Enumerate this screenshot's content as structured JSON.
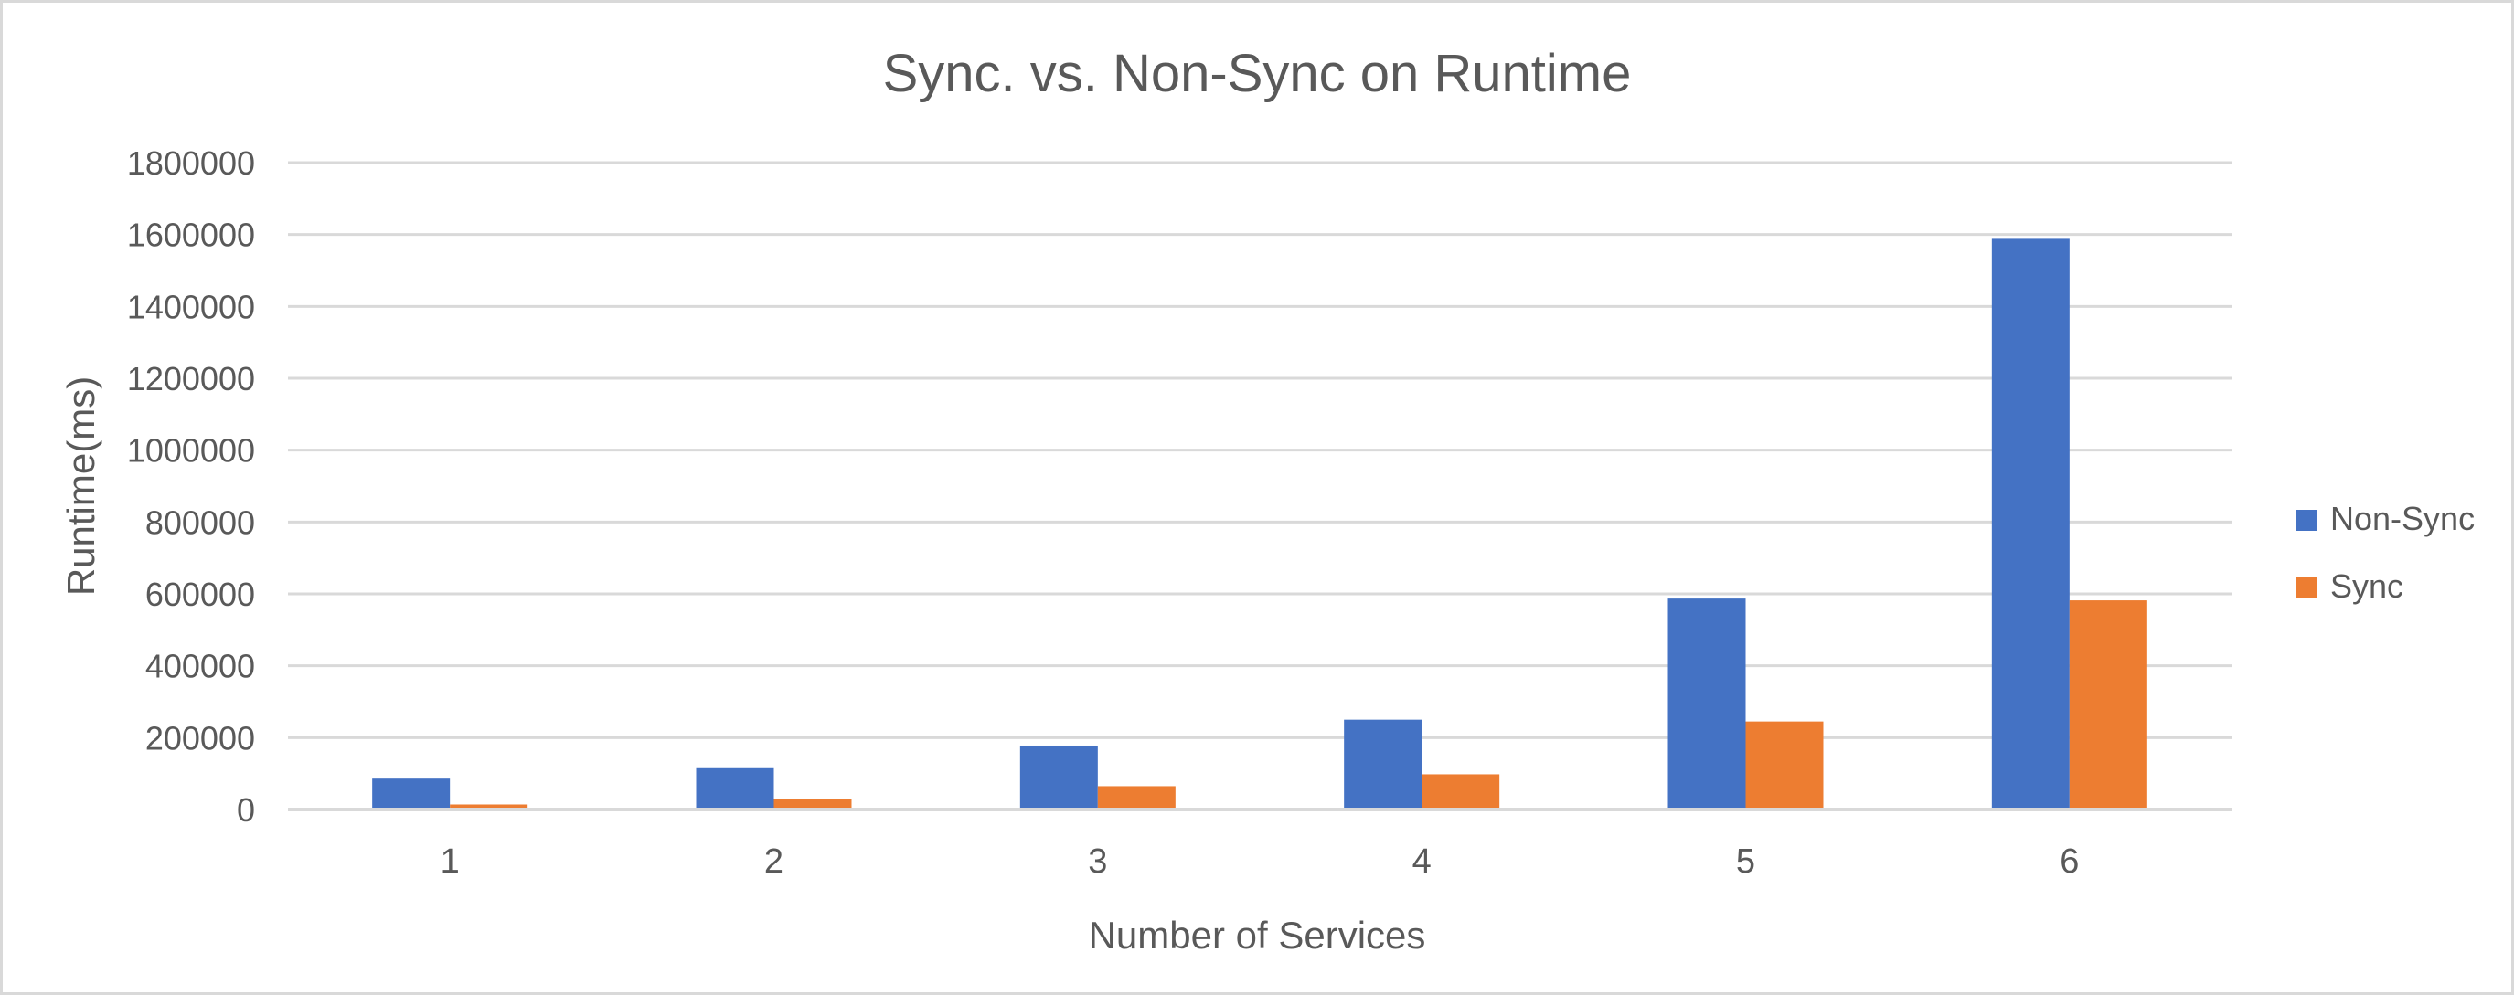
{
  "page": {
    "background": "#ffffff",
    "border_color": "#d9d9d9"
  },
  "chart_data": {
    "type": "bar",
    "title": "Sync. vs. Non-Sync on Runtime",
    "xlabel": "Number of Services",
    "ylabel": "Runtime(ms)",
    "categories": [
      "1",
      "2",
      "3",
      "4",
      "5",
      "6"
    ],
    "series": [
      {
        "name": "Non-Sync",
        "color": "#4472C4",
        "values": [
          86000,
          115000,
          178000,
          250000,
          587000,
          1588000
        ]
      },
      {
        "name": "Sync",
        "color": "#ED7D31",
        "values": [
          14000,
          28000,
          65000,
          98000,
          245000,
          582000
        ]
      }
    ],
    "ylim": [
      0,
      1800000
    ],
    "yticks": [
      0,
      200000,
      400000,
      600000,
      800000,
      1000000,
      1200000,
      1400000,
      1600000,
      1800000
    ],
    "grid": true,
    "gridline_color": "#D9D9D9",
    "axis_line_color": "#D9D9D9",
    "text_color": "#595959",
    "legend_position": "right"
  }
}
